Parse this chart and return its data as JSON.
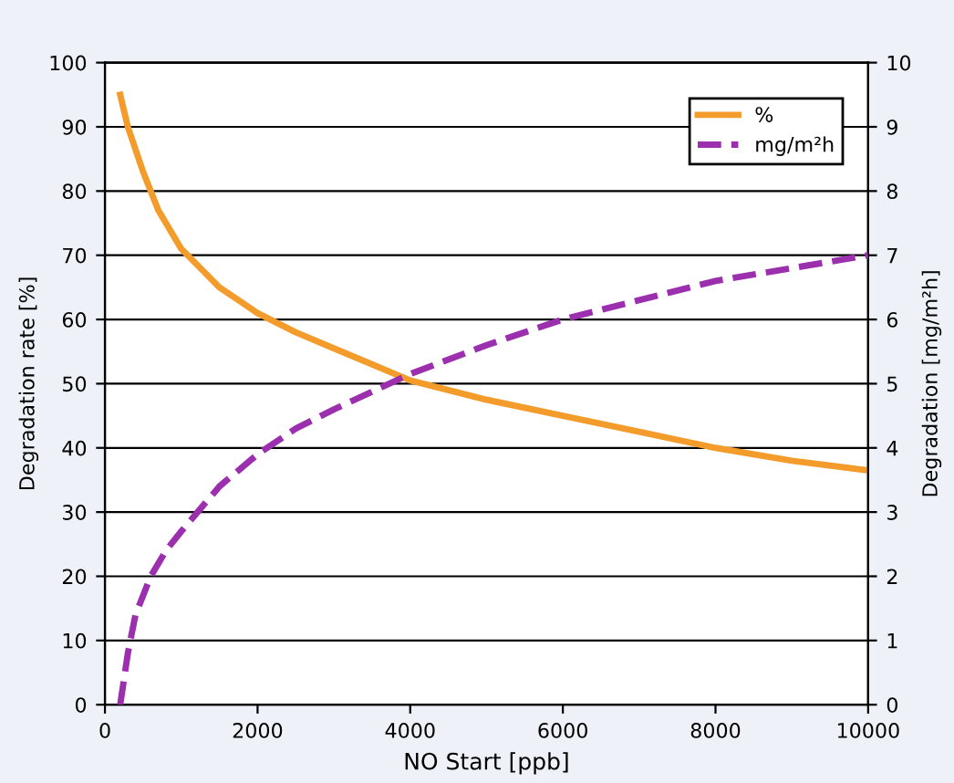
{
  "chart_data": {
    "type": "line",
    "xlabel": "NO Start [ppb]",
    "ylabel": "Degradation rate [%]",
    "y2label": "Degradation [mg/m²h]",
    "xlim": [
      0,
      10000
    ],
    "xticks": [
      0,
      2000,
      4000,
      6000,
      8000,
      10000
    ],
    "ylim": [
      0,
      100
    ],
    "yticks": [
      0,
      10,
      20,
      30,
      40,
      50,
      60,
      70,
      80,
      90,
      100
    ],
    "y2lim": [
      0,
      10
    ],
    "y2ticks": [
      0,
      1,
      2,
      3,
      4,
      5,
      6,
      7,
      8,
      9,
      10
    ],
    "grid": "y",
    "legend": "top right",
    "series": [
      {
        "name": "%",
        "color": "#f39c2b",
        "line_style": "solid",
        "x": [
          200,
          300,
          500,
          700,
          1000,
          1500,
          2000,
          2500,
          3000,
          3500,
          4000,
          5000,
          6000,
          7000,
          8000,
          9000,
          10000
        ],
        "values": [
          95,
          90,
          83,
          77,
          71,
          65,
          61,
          58,
          55.5,
          53,
          50.5,
          47.5,
          45,
          42.5,
          40,
          38,
          36.5
        ]
      },
      {
        "name": "mg/m²h",
        "color": "#9b2fae",
        "line_style": "dashed",
        "axis": "y2",
        "x": [
          200,
          300,
          400,
          600,
          800,
          1000,
          1500,
          2000,
          2500,
          3000,
          4000,
          5000,
          6000,
          7000,
          8000,
          9000,
          10000
        ],
        "values": [
          0,
          0.8,
          1.4,
          2.0,
          2.4,
          2.7,
          3.4,
          3.9,
          4.3,
          4.6,
          5.15,
          5.6,
          6.0,
          6.3,
          6.6,
          6.8,
          7.0
        ]
      }
    ]
  }
}
